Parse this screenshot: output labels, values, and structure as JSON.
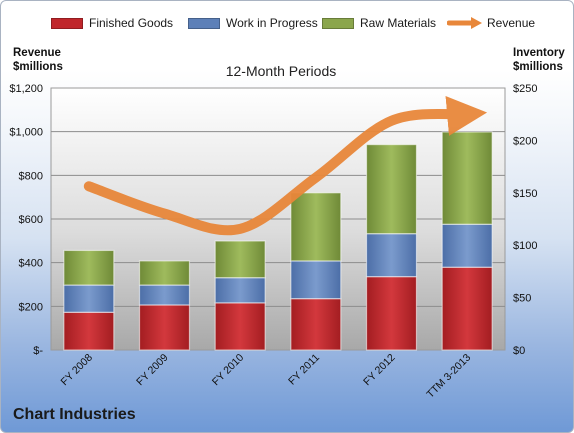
{
  "chart_data": {
    "type": "bar",
    "stacked": true,
    "title": "12-Month Periods",
    "footer_title": "Chart Industries",
    "categories": [
      "FY 2008",
      "FY 2009",
      "FY 2010",
      "FY 2011",
      "FY 2012",
      "TTM 3-2013"
    ],
    "series": [
      {
        "name": "Finished Goods",
        "axis": "right",
        "color": "#c0262b",
        "values": [
          36,
          43,
          45,
          49,
          70,
          79
        ]
      },
      {
        "name": "Work in Progress",
        "axis": "right",
        "color": "#5d80b8",
        "values": [
          26,
          19,
          24,
          36,
          41,
          41
        ]
      },
      {
        "name": "Raw Materials",
        "axis": "right",
        "color": "#8ba64c",
        "values": [
          33,
          23,
          35,
          65,
          85,
          88
        ]
      },
      {
        "name": "Revenue",
        "axis": "left",
        "type": "line",
        "color": "#e8873a",
        "values": [
          750,
          625,
          555,
          790,
          1050,
          1080
        ]
      }
    ],
    "left_axis": {
      "label_line1": "Revenue",
      "label_line2": "$millions",
      "min": 0,
      "max": 1200,
      "ticks": [
        0,
        200,
        400,
        600,
        800,
        1000,
        1200
      ],
      "tick_labels": [
        "$-",
        "$200",
        "$400",
        "$600",
        "$800",
        "$1,000",
        "$1,200"
      ]
    },
    "right_axis": {
      "label_line1": "Inventory",
      "label_line2": "$millions",
      "min": 0,
      "max": 250,
      "ticks": [
        0,
        50,
        100,
        150,
        200,
        250
      ],
      "tick_labels": [
        "$0",
        "$50",
        "$100",
        "$150",
        "$200",
        "$250"
      ]
    },
    "grid": true,
    "legend_position": "top"
  }
}
